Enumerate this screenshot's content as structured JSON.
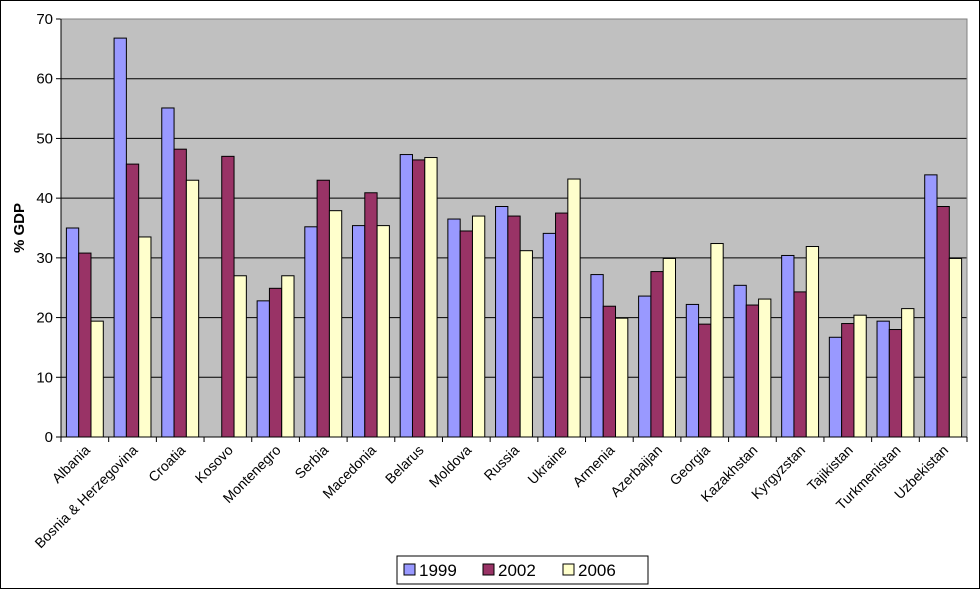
{
  "chart_data": {
    "type": "bar",
    "title": "",
    "xlabel": "",
    "ylabel": "% GDP",
    "ylim": [
      0,
      70
    ],
    "yticks": [
      "0",
      "10",
      "20",
      "30",
      "40",
      "50",
      "60",
      "70"
    ],
    "grid": true,
    "legend_position": "bottom",
    "plot_background": "#c0c0c0",
    "categories": [
      "Albania",
      "Bosnia & Herzegovina",
      "Croatia",
      "Kosovo",
      "Montenegro",
      "Serbia",
      "Macedonia",
      "Belarus",
      "Moldova",
      "Russia",
      "Ukraine",
      "Armenia",
      "Azerbaijan",
      "Georgia",
      "Kazakhstan",
      "Kyrgyzstan",
      "Tajikistan",
      "Turkmenistan",
      "Uzbekistan"
    ],
    "series": [
      {
        "name": "1999",
        "color": "#9999ff",
        "values": [
          35,
          66.8,
          55.1,
          null,
          22.8,
          35.2,
          35.4,
          47.3,
          36.5,
          38.6,
          34.1,
          27.2,
          23.6,
          22.2,
          25.4,
          30.4,
          16.7,
          19.4,
          43.9
        ]
      },
      {
        "name": "2002",
        "color": "#993366",
        "values": [
          30.8,
          45.7,
          48.2,
          47.0,
          24.9,
          43.0,
          40.9,
          46.4,
          34.5,
          37.0,
          37.5,
          21.9,
          27.7,
          18.9,
          22.1,
          24.3,
          19.0,
          18.0,
          38.6
        ]
      },
      {
        "name": "2006",
        "color": "#ffffcc",
        "values": [
          19.4,
          33.5,
          43.0,
          27.0,
          27.0,
          37.9,
          35.4,
          46.8,
          37.0,
          31.2,
          43.2,
          19.9,
          29.9,
          32.4,
          23.1,
          31.9,
          20.4,
          21.5,
          29.9
        ]
      }
    ]
  }
}
